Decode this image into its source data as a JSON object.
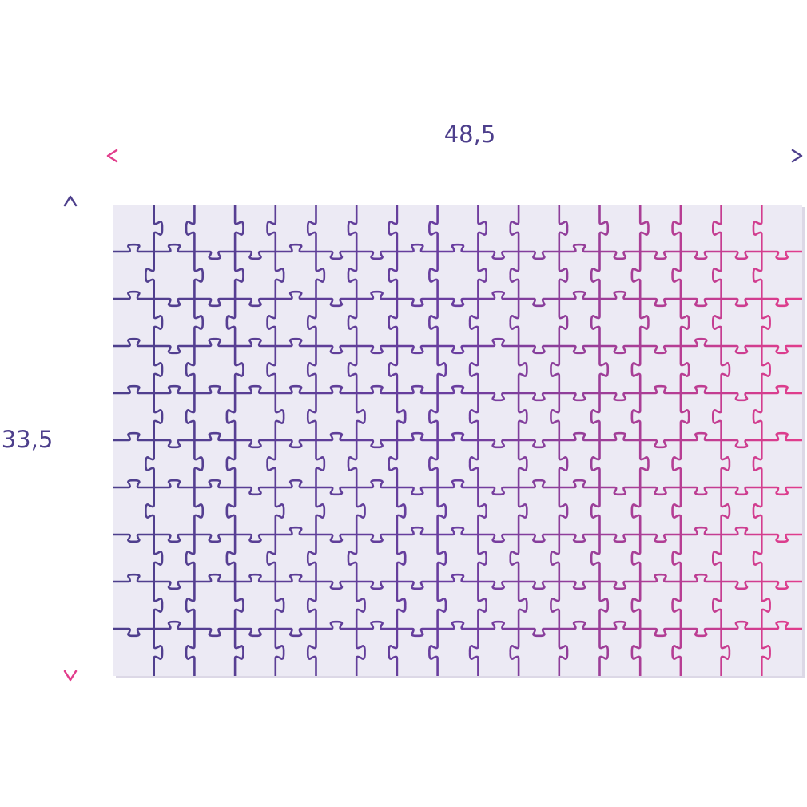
{
  "dimensions": {
    "width_label": "48,5",
    "height_label": "33,5"
  },
  "puzzle": {
    "columns": 17,
    "rows": 10,
    "board_color": "#ECEAF4",
    "edge_color": "#DCD8E6"
  },
  "colors": {
    "purple": "#4D3F8C",
    "magenta": "#E23D8C",
    "label": "#4D3F8C"
  }
}
